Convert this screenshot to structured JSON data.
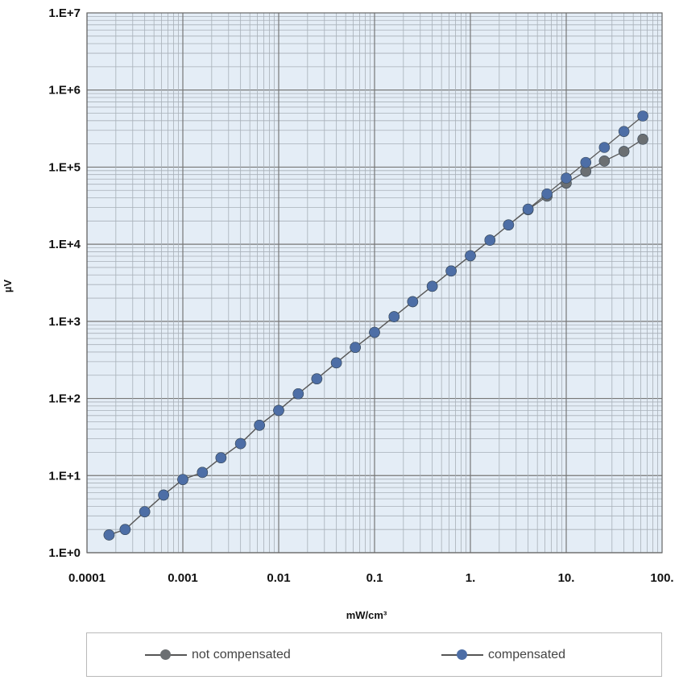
{
  "chart_data": {
    "type": "line",
    "xscale": "log",
    "yscale": "log",
    "xlim": [
      0.0001,
      100
    ],
    "ylim": [
      1,
      10000000
    ],
    "xlabel": "mW/cm³",
    "ylabel": "µV",
    "x_tick_labels": [
      "0.0001",
      "0.001",
      "0.01",
      "0.1",
      "1.",
      "10.",
      "100."
    ],
    "y_tick_labels": [
      "1.E+0",
      "1.E+1",
      "1.E+2",
      "1.E+3",
      "1.E+4",
      "1.E+5",
      "1.E+6",
      "1.E+7"
    ],
    "grid": true,
    "legend_position": "bottom",
    "series": [
      {
        "name": "not compensated",
        "color": "#6b6f72",
        "x": [
          0.00017,
          0.00025,
          0.0004,
          0.00063,
          0.001,
          0.0016,
          0.0025,
          0.004,
          0.0063,
          0.01,
          0.016,
          0.025,
          0.04,
          0.063,
          0.1,
          0.16,
          0.25,
          0.4,
          0.63,
          1.0,
          1.6,
          2.5,
          4.0,
          6.3,
          10,
          16,
          25,
          40,
          63
        ],
        "y": [
          1.7,
          2.0,
          3.4,
          5.6,
          8.9,
          11,
          17,
          26,
          45,
          70,
          115,
          180,
          290,
          460,
          720,
          1150,
          1800,
          2850,
          4500,
          7100,
          11300,
          17800,
          28000,
          42000,
          62000,
          88000,
          120000,
          160000,
          230000
        ]
      },
      {
        "name": "compensated",
        "color": "#4d6ea6",
        "x": [
          0.00017,
          0.00025,
          0.0004,
          0.00063,
          0.001,
          0.0016,
          0.0025,
          0.004,
          0.0063,
          0.01,
          0.016,
          0.025,
          0.04,
          0.063,
          0.1,
          0.16,
          0.25,
          0.4,
          0.63,
          1.0,
          1.6,
          2.5,
          4.0,
          6.3,
          10,
          16,
          25,
          40,
          63
        ],
        "y": [
          1.7,
          2.0,
          3.4,
          5.6,
          8.9,
          11,
          17,
          26,
          45,
          70,
          115,
          180,
          290,
          460,
          720,
          1150,
          1800,
          2850,
          4500,
          7100,
          11300,
          17800,
          28500,
          45000,
          72000,
          115000,
          180000,
          290000,
          460000
        ]
      }
    ]
  }
}
